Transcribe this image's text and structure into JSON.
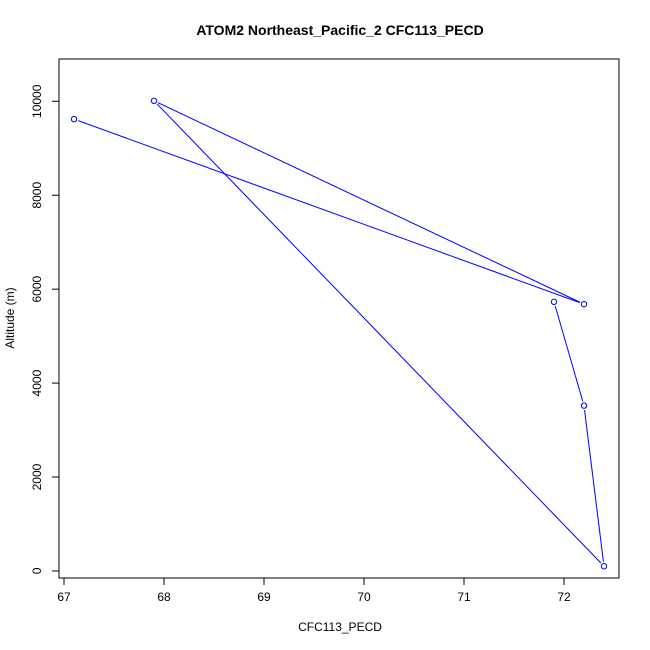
{
  "chart_data": {
    "type": "line",
    "title": "ATOM2 Northeast_Pacific_2 CFC113_PECD",
    "xlabel": "CFC113_PECD",
    "ylabel": "Altitude (m)",
    "xlim": [
      66.95,
      72.55
    ],
    "ylim": [
      -150,
      10900
    ],
    "x_ticks": [
      67,
      68,
      69,
      70,
      71,
      72
    ],
    "y_ticks": [
      0,
      2000,
      4000,
      6000,
      8000,
      10000
    ],
    "grid": false,
    "legend": "none",
    "marker": "open-circle",
    "color": "#0000ff",
    "series": [
      {
        "x": [
          67.1,
          72.2,
          67.9,
          72.4,
          72.2,
          71.9
        ],
        "y": [
          9620,
          5680,
          10010,
          100,
          3520,
          5730
        ]
      }
    ]
  }
}
